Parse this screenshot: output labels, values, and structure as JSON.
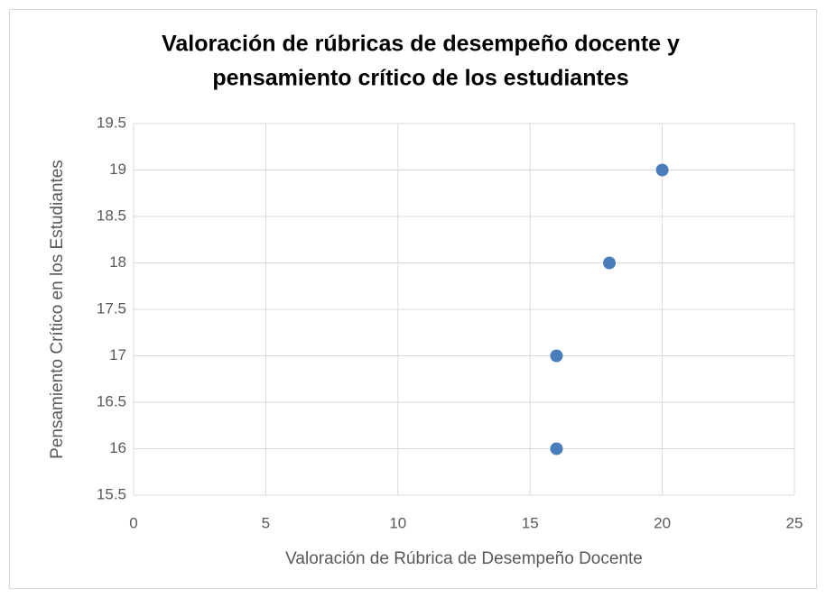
{
  "chart_data": {
    "type": "scatter",
    "title": [
      "Valoración de rúbricas de desempeño docente y",
      "pensamiento crítico de los estudiantes"
    ],
    "x_label": "Valoración de Rúbrica de Desempeño Docente",
    "y_label": "Pensamiento Crítico en los Estudiantes",
    "x": [
      16,
      16,
      18,
      20
    ],
    "values": [
      16,
      17,
      18,
      19
    ],
    "color": "#4a7ebb",
    "xlim": [
      0,
      25
    ],
    "xticks": [
      0,
      5,
      10,
      15,
      20,
      25
    ],
    "ylim": [
      15.5,
      19.5
    ],
    "yticks": [
      15.5,
      16,
      16.5,
      17,
      17.5,
      18,
      18.5,
      19,
      19.5
    ],
    "grid": true
  }
}
